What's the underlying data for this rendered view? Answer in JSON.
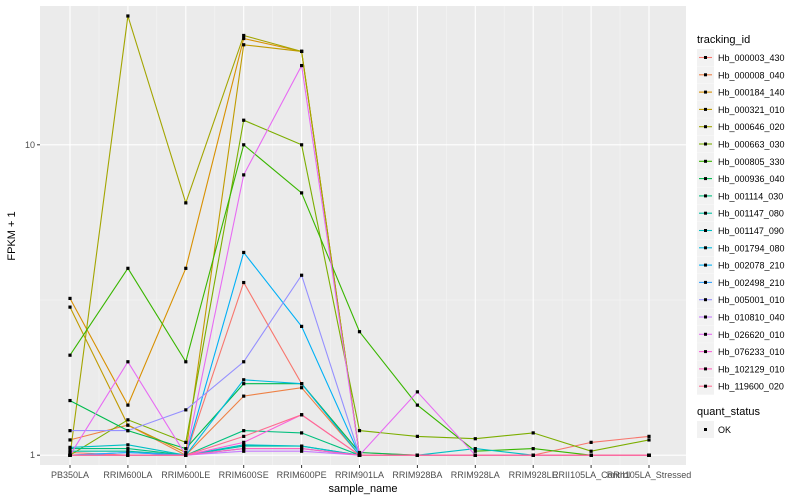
{
  "chart_data": {
    "type": "line",
    "title": "",
    "xlabel": "sample_name",
    "ylabel": "FPKM + 1",
    "y_scale": "log10",
    "ylim": [
      0.93,
      28
    ],
    "y_ticks": [
      1,
      10
    ],
    "y_tick_labels": [
      "1",
      "10"
    ],
    "grid": true,
    "background": "#ebebeb",
    "categories": [
      "PB350LA",
      "RRIM600LA",
      "RRIM600LE",
      "RRIM600SE",
      "RRIM600PE",
      "RRIM901LA",
      "RRIM928BA",
      "RRIM928LA",
      "RRIM928LE",
      "RRII105LA_Control",
      "RRII105LA_Stressed"
    ],
    "legend_title": "tracking_id",
    "series": [
      {
        "name": "Hb_000003_430",
        "color": "#F8766D",
        "values": [
          1.02,
          1.0,
          1.0,
          3.6,
          1.7,
          1.02,
          1.0,
          1.0,
          1.0,
          1.1,
          1.15
        ]
      },
      {
        "name": "Hb_000008_040",
        "color": "#EE8044",
        "values": [
          1.12,
          1.25,
          1.0,
          1.55,
          1.65,
          1.0,
          1.0,
          1.0,
          1.0,
          1.0,
          1.0
        ]
      },
      {
        "name": "Hb_000184_140",
        "color": "#D89000",
        "values": [
          3.2,
          1.45,
          4.0,
          22.0,
          20.0,
          1.0,
          1.0,
          1.0,
          1.0,
          1.0,
          1.0
        ]
      },
      {
        "name": "Hb_000321_010",
        "color": "#C09B00",
        "values": [
          3.0,
          1.25,
          1.02,
          21.0,
          20.0,
          1.0,
          1.0,
          1.0,
          1.0,
          1.0,
          1.0
        ]
      },
      {
        "name": "Hb_000646_020",
        "color": "#A3A500",
        "values": [
          1.0,
          26.0,
          6.5,
          22.5,
          20.0,
          1.0,
          1.0,
          1.0,
          1.0,
          1.0,
          1.0
        ]
      },
      {
        "name": "Hb_000663_030",
        "color": "#7CAE00",
        "values": [
          1.0,
          1.3,
          1.1,
          12.0,
          10.0,
          1.2,
          1.15,
          1.13,
          1.18,
          1.03,
          1.12
        ]
      },
      {
        "name": "Hb_000805_330",
        "color": "#39B600",
        "values": [
          2.1,
          4.0,
          2.0,
          10.0,
          7.0,
          2.5,
          1.45,
          1.03,
          1.05,
          1.0,
          1.0
        ]
      },
      {
        "name": "Hb_000936_040",
        "color": "#00BB4E",
        "values": [
          1.5,
          1.2,
          1.05,
          1.7,
          1.7,
          1.02,
          1.0,
          1.0,
          1.0,
          1.0,
          1.0
        ]
      },
      {
        "name": "Hb_001114_030",
        "color": "#00BF7D",
        "values": [
          1.05,
          1.05,
          1.0,
          1.2,
          1.18,
          1.0,
          1.0,
          1.0,
          1.0,
          1.0,
          1.0
        ]
      },
      {
        "name": "Hb_001147_080",
        "color": "#00C1A3",
        "values": [
          1.03,
          1.03,
          1.0,
          1.07,
          1.07,
          1.0,
          1.0,
          1.0,
          1.0,
          1.0,
          1.0
        ]
      },
      {
        "name": "Hb_001147_090",
        "color": "#00BFC4",
        "values": [
          1.06,
          1.08,
          1.0,
          1.08,
          1.07,
          1.0,
          1.0,
          1.05,
          1.0,
          1.0,
          1.0
        ]
      },
      {
        "name": "Hb_001794_080",
        "color": "#00BAE0",
        "values": [
          1.0,
          1.0,
          1.0,
          1.75,
          1.7,
          1.0,
          1.0,
          1.0,
          1.0,
          1.0,
          1.0
        ]
      },
      {
        "name": "Hb_002078_210",
        "color": "#00B0F6",
        "values": [
          1.0,
          1.02,
          1.0,
          4.5,
          2.6,
          1.0,
          1.0,
          1.0,
          1.0,
          1.0,
          1.0
        ]
      },
      {
        "name": "Hb_002498_210",
        "color": "#35A2FF",
        "values": [
          1.0,
          1.02,
          1.0,
          1.05,
          1.05,
          1.0,
          1.0,
          1.0,
          1.0,
          1.0,
          1.0
        ]
      },
      {
        "name": "Hb_005001_010",
        "color": "#9590FF",
        "values": [
          1.2,
          1.2,
          1.4,
          2.0,
          3.8,
          1.0,
          1.0,
          1.0,
          1.0,
          1.0,
          1.0
        ]
      },
      {
        "name": "Hb_010810_040",
        "color": "#C77CFF",
        "values": [
          1.0,
          1.0,
          1.0,
          1.03,
          1.03,
          1.0,
          1.0,
          1.0,
          1.0,
          1.0,
          1.0
        ]
      },
      {
        "name": "Hb_026620_010",
        "color": "#E76BF3",
        "values": [
          1.0,
          2.0,
          1.0,
          8.0,
          18.0,
          1.0,
          1.6,
          1.0,
          1.0,
          1.0,
          1.0
        ]
      },
      {
        "name": "Hb_076233_010",
        "color": "#FA62DB",
        "values": [
          1.0,
          1.0,
          1.0,
          1.1,
          1.35,
          1.0,
          1.0,
          1.0,
          1.0,
          1.0,
          1.0
        ]
      },
      {
        "name": "Hb_102129_010",
        "color": "#FF62BC",
        "values": [
          1.0,
          1.0,
          1.0,
          1.05,
          1.05,
          1.0,
          1.0,
          1.0,
          1.0,
          1.0,
          1.0
        ]
      },
      {
        "name": "Hb_119600_020",
        "color": "#FF6C91",
        "values": [
          1.0,
          1.0,
          1.0,
          1.15,
          1.35,
          1.0,
          1.0,
          1.0,
          1.0,
          1.0,
          1.0
        ]
      }
    ],
    "shape_legend": {
      "title": "quant_status",
      "items": [
        {
          "label": "OK",
          "color": "#000000"
        }
      ]
    }
  }
}
